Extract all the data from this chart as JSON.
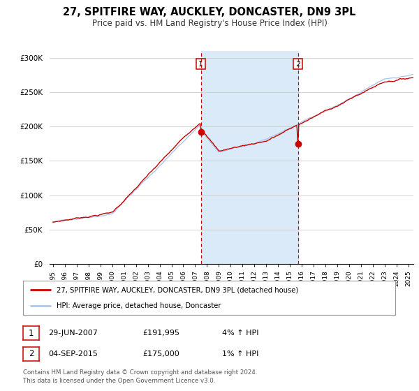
{
  "title": "27, SPITFIRE WAY, AUCKLEY, DONCASTER, DN9 3PL",
  "subtitle": "Price paid vs. HM Land Registry's House Price Index (HPI)",
  "legend_line1": "27, SPITFIRE WAY, AUCKLEY, DONCASTER, DN9 3PL (detached house)",
  "legend_line2": "HPI: Average price, detached house, Doncaster",
  "sale1_date": "29-JUN-2007",
  "sale1_price": "£191,995",
  "sale1_hpi": "4% ↑ HPI",
  "sale1_year": 2007.49,
  "sale1_value": 191995,
  "sale2_date": "04-SEP-2015",
  "sale2_price": "£175,000",
  "sale2_hpi": "1% ↑ HPI",
  "sale2_year": 2015.67,
  "sale2_value": 175000,
  "hpi_color": "#aac8e8",
  "sale_color": "#cc0000",
  "vline_color": "#cc0000",
  "shade_color": "#daeaf8",
  "footer": "Contains HM Land Registry data © Crown copyright and database right 2024.\nThis data is licensed under the Open Government Licence v3.0.",
  "ylim": [
    0,
    310000
  ],
  "xlim_start": 1994.7,
  "xlim_end": 2025.4,
  "yticks": [
    0,
    50000,
    100000,
    150000,
    200000,
    250000,
    300000
  ]
}
